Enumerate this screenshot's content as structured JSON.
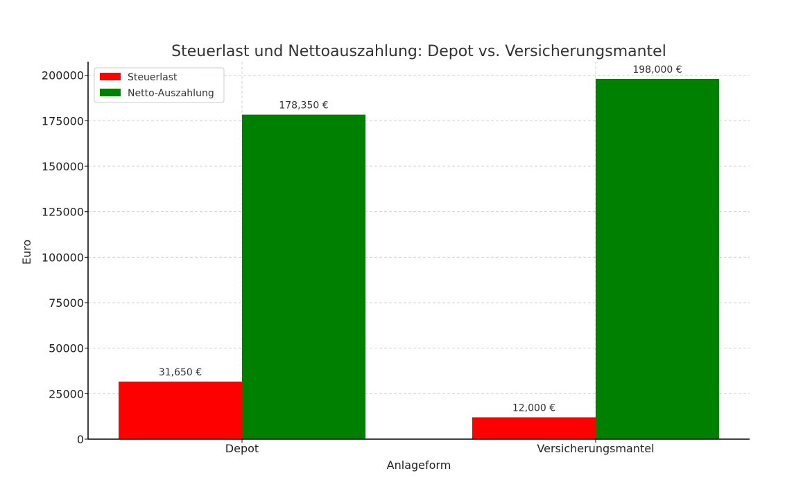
{
  "chart_data": {
    "type": "bar",
    "title": "Steuerlast und Nettoauszahlung: Depot vs. Versicherungsmantel",
    "xlabel": "Anlageform",
    "ylabel": "Euro",
    "categories": [
      "Depot",
      "Versicherungsmantel"
    ],
    "series": [
      {
        "name": "Steuerlast",
        "color": "#ff0000",
        "values": [
          31650,
          12000
        ],
        "labels": [
          "31,650 €",
          "12,000 €"
        ]
      },
      {
        "name": "Netto-Auszahlung",
        "color": "#008000",
        "values": [
          178350,
          198000
        ],
        "labels": [
          "178,350 €",
          "198,000 €"
        ]
      }
    ],
    "ylim": [
      0,
      207500
    ],
    "yticks": [
      0,
      25000,
      50000,
      75000,
      100000,
      125000,
      150000,
      175000,
      200000
    ],
    "ytick_labels": [
      "0",
      "25000",
      "50000",
      "75000",
      "100000",
      "125000",
      "150000",
      "175000",
      "200000"
    ],
    "grid": true,
    "legend_position": "top-left"
  }
}
